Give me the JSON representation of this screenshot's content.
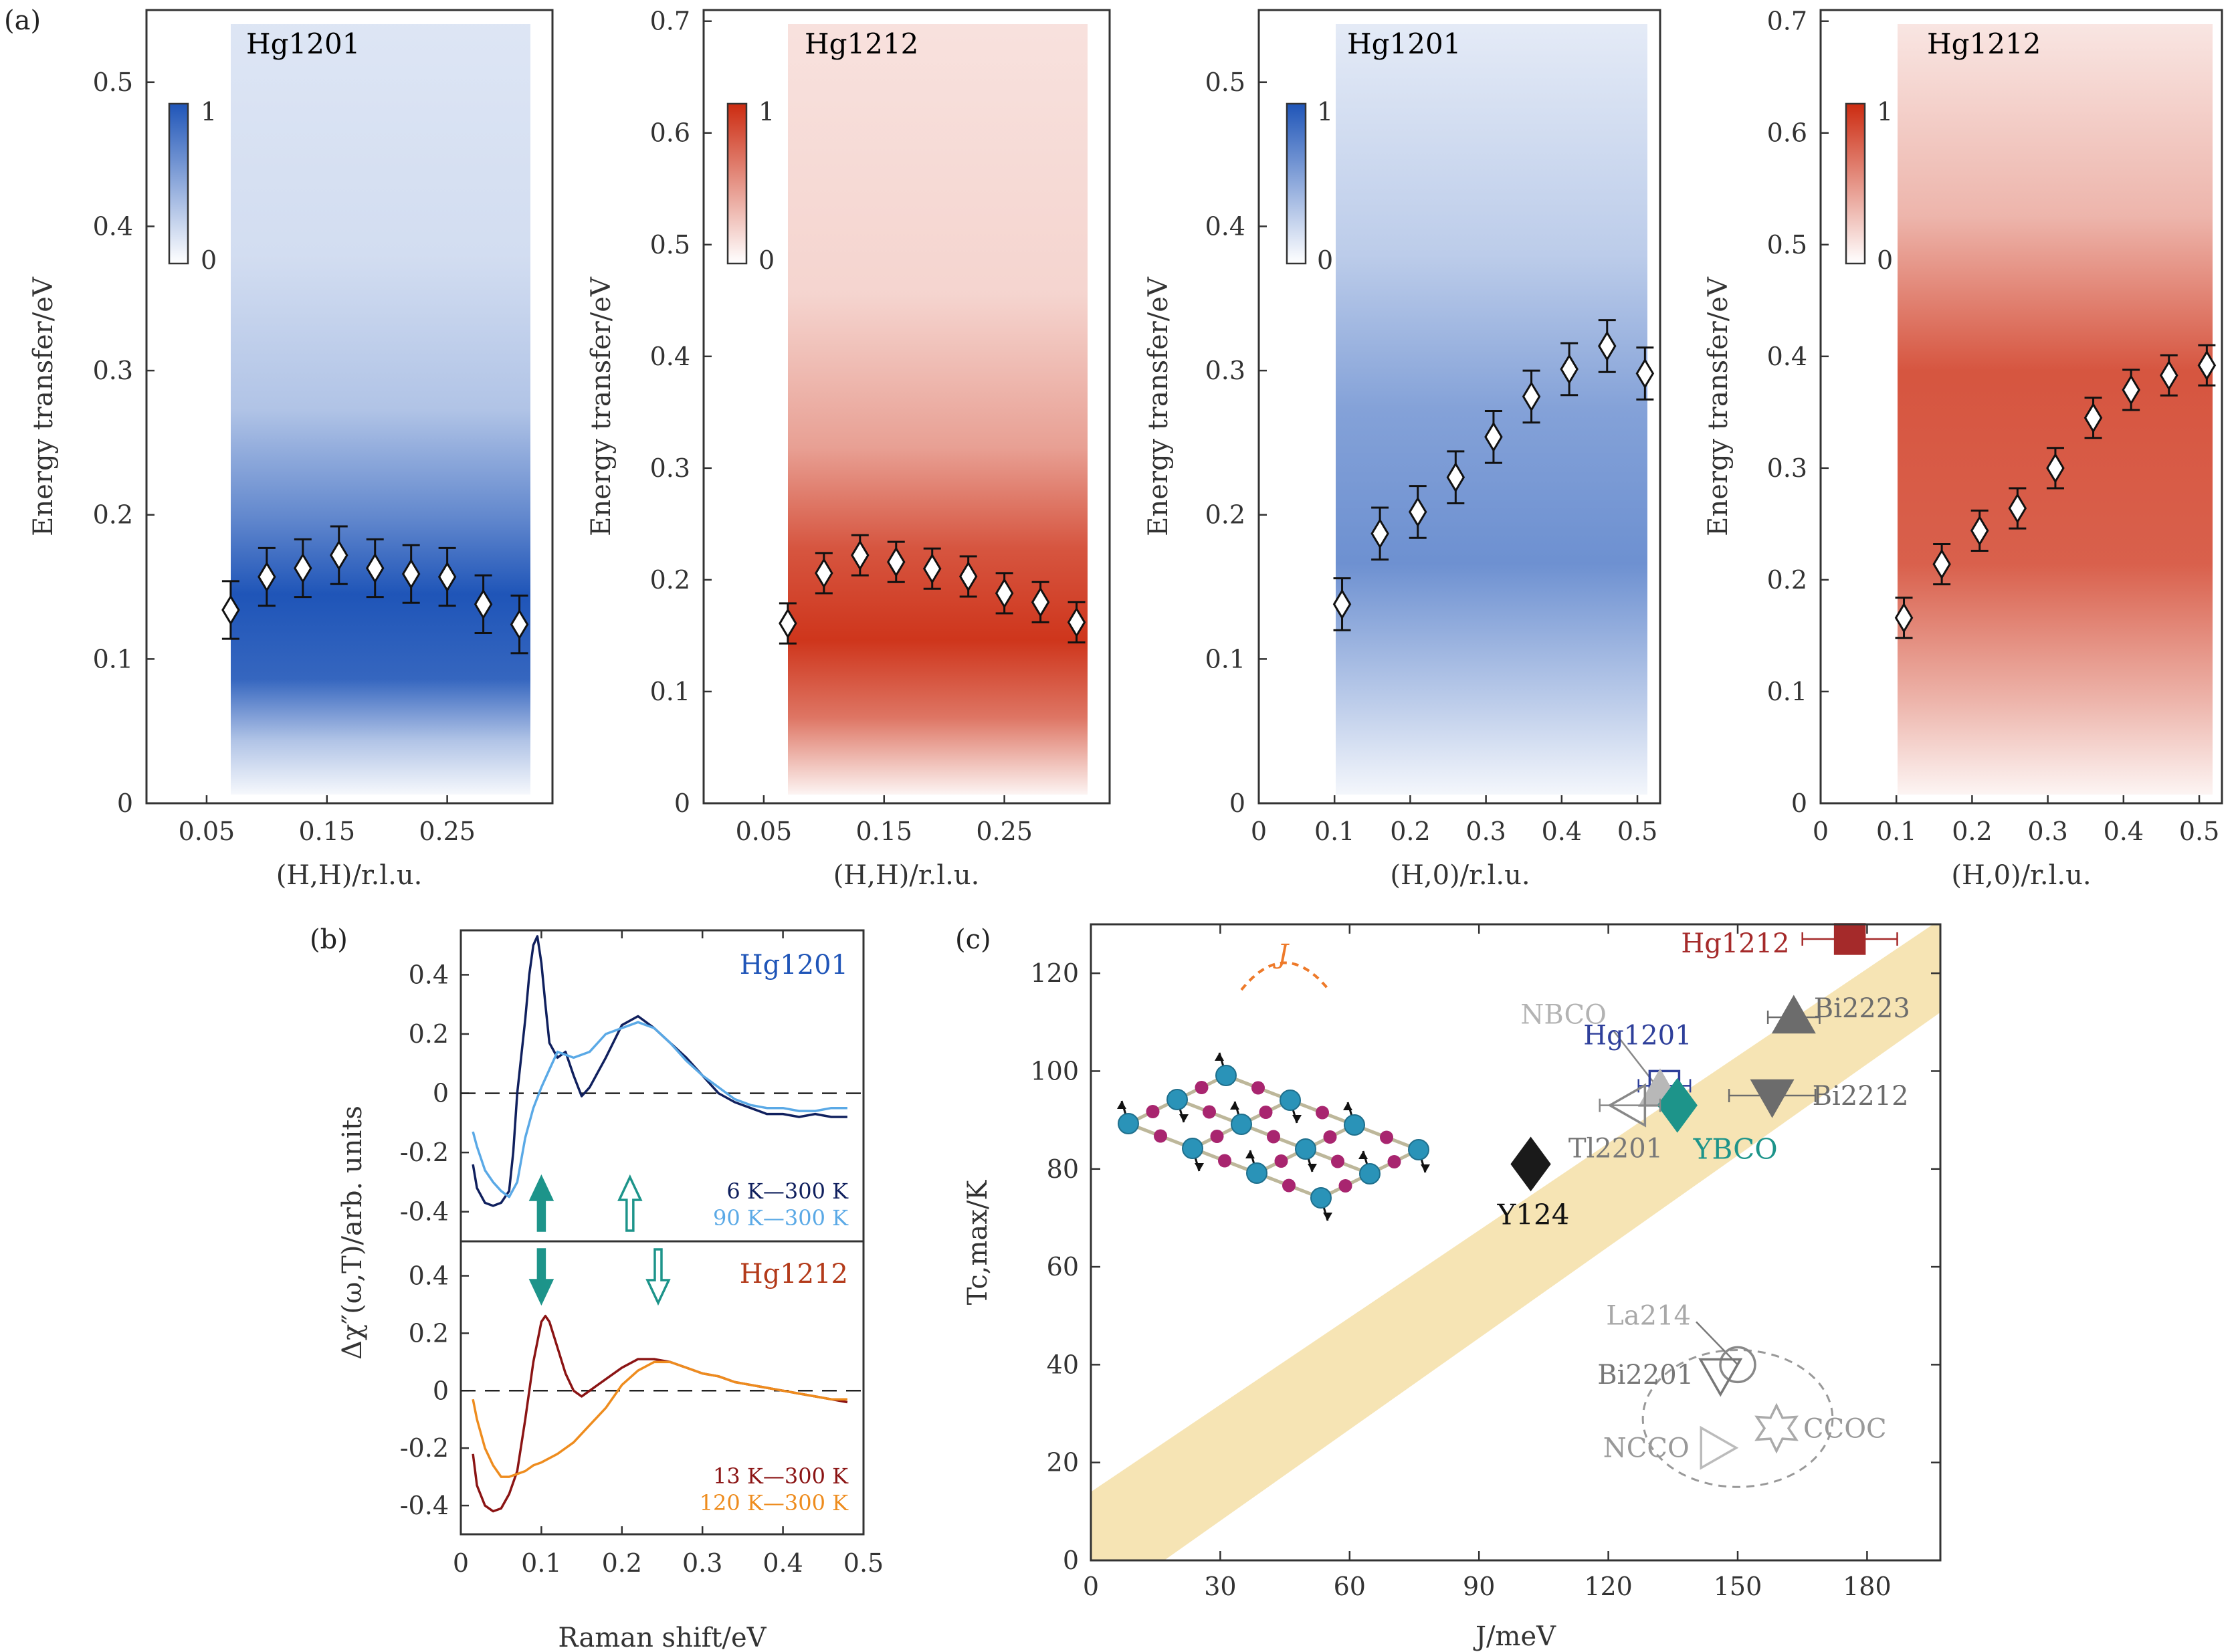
{
  "panel_labels": {
    "a": "(a)",
    "b": "(b)",
    "c": "(c)"
  },
  "colors": {
    "hg1201": "#1f55b8",
    "hg1212": "#cc2b10",
    "teal": "#1d948a",
    "band": "#f6e4b4"
  },
  "colorbar": {
    "max_label": "1",
    "min_label": "0"
  },
  "chart_data": [
    {
      "type": "heatmap",
      "title": "Hg1201",
      "xlabel": "(H,H)/r.l.u.",
      "ylabel": "Energy transfer/eV",
      "xlim": [
        0.0,
        0.3375
      ],
      "ylim": [
        0,
        0.55
      ],
      "xticks": [
        "0.05",
        "0.15",
        "0.25"
      ],
      "yticks": [
        "0",
        "0.1",
        "0.2",
        "0.3",
        "0.4",
        "0.5"
      ],
      "intensity_range": [
        0,
        1
      ],
      "x": [
        0.07,
        0.1,
        0.13,
        0.16,
        0.19,
        0.22,
        0.25,
        0.28,
        0.31
      ],
      "y": [
        0.134,
        0.157,
        0.163,
        0.172,
        0.163,
        0.159,
        0.157,
        0.138,
        0.124
      ],
      "yerr": 0.02
    },
    {
      "type": "heatmap",
      "title": "Hg1212",
      "xlabel": "(H,H)/r.l.u.",
      "ylabel": "Energy transfer/eV",
      "xlim": [
        0.0,
        0.3375
      ],
      "ylim": [
        0,
        0.71
      ],
      "xticks": [
        "0.05",
        "0.15",
        "0.25"
      ],
      "yticks": [
        "0",
        "0.1",
        "0.2",
        "0.3",
        "0.4",
        "0.5",
        "0.6",
        "0.7"
      ],
      "intensity_range": [
        0,
        1
      ],
      "x": [
        0.07,
        0.1,
        0.13,
        0.16,
        0.19,
        0.22,
        0.25,
        0.28,
        0.31
      ],
      "y": [
        0.161,
        0.206,
        0.222,
        0.216,
        0.21,
        0.203,
        0.188,
        0.18,
        0.162
      ],
      "yerr": 0.018
    },
    {
      "type": "heatmap",
      "title": "Hg1201",
      "xlabel": "(H,0)/r.l.u.",
      "ylabel": "Energy transfer/eV",
      "xlim": [
        0.0,
        0.53
      ],
      "ylim": [
        0,
        0.55
      ],
      "xticks": [
        "0",
        "0.1",
        "0.2",
        "0.3",
        "0.4",
        "0.5"
      ],
      "yticks": [
        "0",
        "0.1",
        "0.2",
        "0.3",
        "0.4",
        "0.5"
      ],
      "intensity_range": [
        0,
        1
      ],
      "x": [
        0.11,
        0.16,
        0.21,
        0.26,
        0.31,
        0.36,
        0.41,
        0.46,
        0.51
      ],
      "y": [
        0.138,
        0.187,
        0.202,
        0.226,
        0.254,
        0.282,
        0.301,
        0.317,
        0.298
      ],
      "yerr": 0.018
    },
    {
      "type": "heatmap",
      "title": "Hg1212",
      "xlabel": "(H,0)/r.l.u.",
      "ylabel": "Energy transfer/eV",
      "xlim": [
        0.0,
        0.53
      ],
      "ylim": [
        0,
        0.71
      ],
      "xticks": [
        "0",
        "0.1",
        "0.2",
        "0.3",
        "0.4",
        "0.5"
      ],
      "yticks": [
        "0",
        "0.1",
        "0.2",
        "0.3",
        "0.4",
        "0.5",
        "0.6",
        "0.7"
      ],
      "intensity_range": [
        0,
        1
      ],
      "x": [
        0.11,
        0.16,
        0.21,
        0.26,
        0.31,
        0.36,
        0.41,
        0.46,
        0.51
      ],
      "y": [
        0.166,
        0.214,
        0.244,
        0.264,
        0.3,
        0.345,
        0.37,
        0.383,
        0.392
      ],
      "yerr": 0.018
    },
    {
      "type": "line",
      "title": "Hg1201",
      "xlabel": "Raman shift/eV",
      "ylabel": "Δχ″(ω,T)/arb. units",
      "xlim": [
        0,
        0.5
      ],
      "ylim": [
        -0.5,
        0.55
      ],
      "yticks": [
        "-0.4",
        "-0.2",
        "0",
        "0.2",
        "0.4"
      ],
      "series": [
        {
          "name": "6 K—300 K",
          "color": "#10205e",
          "x": [
            0.015,
            0.02,
            0.03,
            0.04,
            0.05,
            0.06,
            0.065,
            0.07,
            0.08,
            0.085,
            0.09,
            0.095,
            0.1,
            0.105,
            0.11,
            0.12,
            0.13,
            0.14,
            0.15,
            0.16,
            0.18,
            0.2,
            0.22,
            0.24,
            0.26,
            0.28,
            0.3,
            0.32,
            0.34,
            0.36,
            0.38,
            0.4,
            0.42,
            0.44,
            0.46,
            0.48
          ],
          "y": [
            -0.24,
            -0.32,
            -0.37,
            -0.38,
            -0.37,
            -0.33,
            -0.2,
            0.0,
            0.25,
            0.4,
            0.5,
            0.53,
            0.44,
            0.3,
            0.17,
            0.12,
            0.14,
            0.06,
            -0.01,
            0.02,
            0.12,
            0.23,
            0.26,
            0.22,
            0.17,
            0.12,
            0.06,
            0.0,
            -0.03,
            -0.05,
            -0.07,
            -0.07,
            -0.08,
            -0.07,
            -0.08,
            -0.08
          ]
        },
        {
          "name": "90 K—300 K",
          "color": "#5aa9e6",
          "x": [
            0.015,
            0.02,
            0.03,
            0.04,
            0.05,
            0.06,
            0.07,
            0.08,
            0.09,
            0.1,
            0.11,
            0.12,
            0.13,
            0.14,
            0.15,
            0.16,
            0.18,
            0.2,
            0.22,
            0.24,
            0.26,
            0.28,
            0.3,
            0.32,
            0.34,
            0.36,
            0.38,
            0.4,
            0.42,
            0.44,
            0.46,
            0.48
          ],
          "y": [
            -0.13,
            -0.18,
            -0.26,
            -0.3,
            -0.33,
            -0.35,
            -0.3,
            -0.15,
            -0.05,
            0.02,
            0.08,
            0.14,
            0.13,
            0.12,
            0.13,
            0.14,
            0.2,
            0.22,
            0.24,
            0.22,
            0.17,
            0.11,
            0.06,
            0.02,
            -0.02,
            -0.04,
            -0.05,
            -0.05,
            -0.06,
            -0.06,
            -0.05,
            -0.05
          ]
        }
      ],
      "arrows": [
        {
          "x": 0.1,
          "direction": "up",
          "style": "filled"
        },
        {
          "x": 0.21,
          "direction": "up",
          "style": "open"
        }
      ]
    },
    {
      "type": "line",
      "title": "Hg1212",
      "xlabel": "Raman shift/eV",
      "ylabel": "Δχ″(ω,T)/arb. units",
      "xlim": [
        0,
        0.5
      ],
      "ylim": [
        -0.5,
        0.52
      ],
      "xticks": [
        "0",
        "0.1",
        "0.2",
        "0.3",
        "0.4",
        "0.5"
      ],
      "yticks": [
        "-0.4",
        "-0.2",
        "0",
        "0.2",
        "0.4"
      ],
      "series": [
        {
          "name": "13 K—300 K",
          "color": "#8b1414",
          "x": [
            0.015,
            0.02,
            0.03,
            0.04,
            0.05,
            0.06,
            0.07,
            0.08,
            0.09,
            0.1,
            0.105,
            0.11,
            0.12,
            0.13,
            0.14,
            0.15,
            0.16,
            0.18,
            0.2,
            0.22,
            0.24,
            0.26,
            0.28,
            0.3,
            0.32,
            0.34,
            0.36,
            0.38,
            0.4,
            0.42,
            0.44,
            0.46,
            0.48
          ],
          "y": [
            -0.22,
            -0.33,
            -0.4,
            -0.42,
            -0.41,
            -0.36,
            -0.28,
            -0.1,
            0.1,
            0.24,
            0.26,
            0.24,
            0.15,
            0.06,
            0.0,
            -0.02,
            0.0,
            0.04,
            0.08,
            0.11,
            0.11,
            0.1,
            0.08,
            0.06,
            0.05,
            0.03,
            0.02,
            0.01,
            0.0,
            -0.01,
            -0.02,
            -0.03,
            -0.04
          ]
        },
        {
          "name": "120 K—300 K",
          "color": "#ee8c1e",
          "x": [
            0.015,
            0.02,
            0.03,
            0.04,
            0.05,
            0.06,
            0.07,
            0.08,
            0.09,
            0.1,
            0.12,
            0.14,
            0.16,
            0.18,
            0.2,
            0.22,
            0.24,
            0.26,
            0.28,
            0.3,
            0.32,
            0.34,
            0.36,
            0.38,
            0.4,
            0.42,
            0.44,
            0.46,
            0.48
          ],
          "y": [
            -0.03,
            -0.1,
            -0.2,
            -0.26,
            -0.3,
            -0.3,
            -0.29,
            -0.28,
            -0.26,
            -0.25,
            -0.22,
            -0.18,
            -0.12,
            -0.06,
            0.02,
            0.07,
            0.1,
            0.1,
            0.08,
            0.06,
            0.05,
            0.03,
            0.02,
            0.01,
            0.0,
            -0.01,
            -0.02,
            -0.03,
            -0.03
          ]
        }
      ],
      "arrows": [
        {
          "x": 0.1,
          "direction": "down",
          "style": "filled"
        },
        {
          "x": 0.245,
          "direction": "down",
          "style": "open"
        }
      ]
    },
    {
      "type": "scatter",
      "xlabel": "J/meV",
      "ylabel": "Tc,max/K",
      "xlim": [
        0,
        197
      ],
      "ylim": [
        0,
        130
      ],
      "xticks": [
        "0",
        "30",
        "60",
        "90",
        "120",
        "150",
        "180"
      ],
      "yticks": [
        "0",
        "20",
        "40",
        "60",
        "80",
        "100",
        "120"
      ],
      "inset_label": "J",
      "points": [
        {
          "label": "Hg1212",
          "x": 176,
          "y": 127,
          "xerr": 11,
          "marker": "square",
          "fill": "#a52a2a",
          "stroke": "#a52a2a",
          "label_color": "#a52a2a"
        },
        {
          "label": "Bi2223",
          "x": 163,
          "y": 111,
          "xerr": 6,
          "marker": "triangle-up",
          "fill": "#6c6c6c",
          "stroke": "#6c6c6c",
          "label_color": "#6c6c6c"
        },
        {
          "label": "Bi2212",
          "x": 158,
          "y": 95,
          "xerr": 10,
          "marker": "triangle-down",
          "fill": "#6c6c6c",
          "stroke": "#6c6c6c",
          "label_color": "#6c6c6c"
        },
        {
          "label": "Hg1201",
          "x": 133,
          "y": 97,
          "xerr": 6,
          "marker": "square-open",
          "fill": "none",
          "stroke": "#2e3f9a",
          "label_color": "#2e3f9a"
        },
        {
          "label": "NBCO",
          "x": 132,
          "y": 96,
          "xerr": 0,
          "marker": "triangle-up",
          "fill": "#b8b8b8",
          "stroke": "#b8b8b8",
          "label_color": "#b3b3b3"
        },
        {
          "label": "YBCO",
          "x": 136,
          "y": 93,
          "xerr": 0,
          "marker": "diamond",
          "fill": "#1d948a",
          "stroke": "#1d948a",
          "label_color": "#1d948a"
        },
        {
          "label": "Tl2201",
          "x": 125,
          "y": 93,
          "xerr": 7,
          "marker": "triangle-left-open",
          "fill": "none",
          "stroke": "#888888",
          "label_color": "#777777"
        },
        {
          "label": "Y124",
          "x": 102,
          "y": 81,
          "xerr": 0,
          "marker": "diamond",
          "fill": "#1a1a1a",
          "stroke": "#1a1a1a",
          "label_color": "#111111"
        },
        {
          "label": "La214",
          "x": 150,
          "y": 40,
          "xerr": 0,
          "marker": "circle-open",
          "fill": "none",
          "stroke": "#888888",
          "label_color": "#a8a8a8"
        },
        {
          "label": "Bi2201",
          "x": 146,
          "y": 38,
          "xerr": 0,
          "marker": "triangle-down-open",
          "fill": "none",
          "stroke": "#777777",
          "label_color": "#777777"
        },
        {
          "label": "CCOC",
          "x": 159,
          "y": 27,
          "xerr": 0,
          "marker": "star-open",
          "fill": "none",
          "stroke": "#aaaaaa",
          "label_color": "#999999"
        },
        {
          "label": "NCCO",
          "x": 145,
          "y": 23,
          "xerr": 0,
          "marker": "triangle-right-open",
          "fill": "none",
          "stroke": "#bbbbbb",
          "label_color": "#999999"
        }
      ],
      "band": {
        "lower": [
          [
            17,
            0
          ],
          [
            197,
            112
          ]
        ],
        "upper": [
          [
            0,
            14
          ],
          [
            197,
            131
          ]
        ]
      },
      "dashed_circle": {
        "cx": 150,
        "cy": 29,
        "rx": 22,
        "ry": 14
      }
    }
  ]
}
